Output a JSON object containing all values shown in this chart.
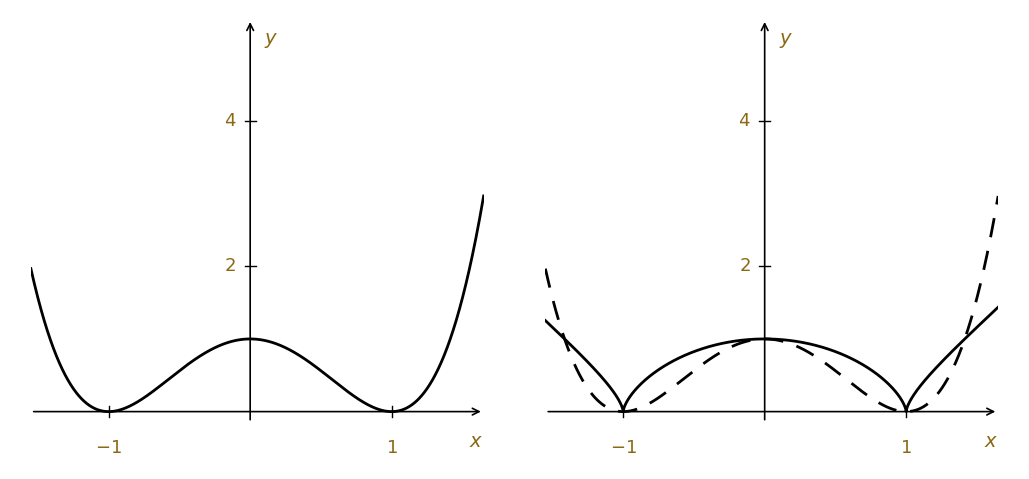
{
  "xlim": [
    -1.55,
    1.65
  ],
  "ylim": [
    -0.4,
    5.4
  ],
  "background": "#ffffff",
  "label_color": "#8B6914",
  "curve_color": "#000000",
  "lw": 2.0,
  "ytick_vals": [
    2,
    4
  ],
  "xtick_vals": [
    -1,
    1
  ],
  "figsize": [
    10.29,
    4.79
  ],
  "dpi": 100
}
